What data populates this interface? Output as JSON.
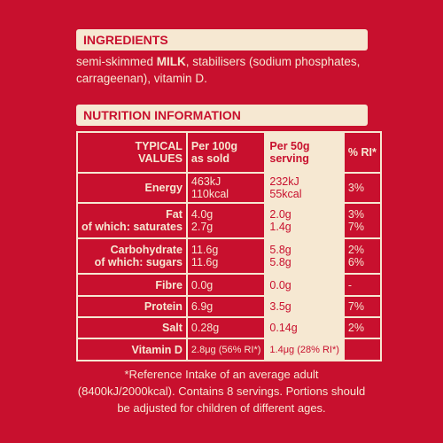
{
  "ingredients": {
    "title": "INGREDIENTS",
    "lines": [
      [
        "semi-skimmed ",
        "MILK",
        ", stabilisers (sodium phosphates,"
      ],
      [
        "carrageenan), vitamin D."
      ]
    ]
  },
  "nutrition": {
    "title": "NUTRITION INFORMATION",
    "header": [
      [
        "TYPICAL",
        "VALUES"
      ],
      [
        "Per 100g",
        "as sold"
      ],
      [
        "Per 50g",
        "serving"
      ],
      [
        "% RI*"
      ]
    ],
    "rows": [
      {
        "label": [
          "Energy"
        ],
        "per100": [
          "463kJ",
          "110kcal"
        ],
        "per50": [
          "232kJ",
          "55kcal"
        ],
        "ri": [
          "3%"
        ]
      },
      {
        "label": [
          "Fat",
          "of which: saturates"
        ],
        "per100": [
          "4.0g",
          "2.7g"
        ],
        "per50": [
          "2.0g",
          "1.4g"
        ],
        "ri": [
          "3%",
          "7%"
        ]
      },
      {
        "label": [
          "Carbohydrate",
          "of which: sugars"
        ],
        "per100": [
          "11.6g",
          "11.6g"
        ],
        "per50": [
          "5.8g",
          "5.8g"
        ],
        "ri": [
          "2%",
          "6%"
        ]
      },
      {
        "label": [
          "Fibre"
        ],
        "per100": [
          "0.0g"
        ],
        "per50": [
          "0.0g"
        ],
        "ri": [
          "-"
        ]
      },
      {
        "label": [
          "Protein"
        ],
        "per100": [
          "6.9g"
        ],
        "per50": [
          "3.5g"
        ],
        "ri": [
          "7%"
        ]
      },
      {
        "label": [
          "Salt"
        ],
        "per100": [
          "0.28g"
        ],
        "per50": [
          "0.14g"
        ],
        "ri": [
          "2%"
        ]
      },
      {
        "label": [
          "Vitamin D"
        ],
        "per100": [
          "2.8μg (56% RI*)"
        ],
        "per50": [
          "1.4μg (28% RI*)"
        ]
      }
    ],
    "footnote": [
      "*Reference Intake of an average adult",
      "(8400kJ/2000kcal). Contains 8 servings. Portions should",
      "be adjusted for children of different ages."
    ]
  }
}
